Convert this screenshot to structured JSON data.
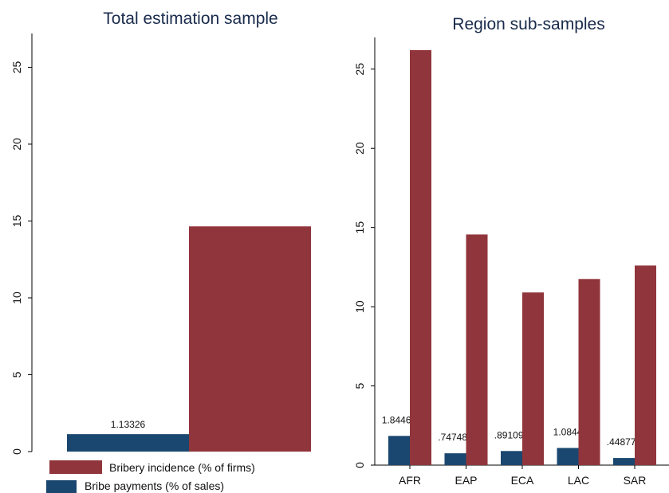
{
  "chart_data": [
    {
      "type": "bar",
      "title": "Total estimation sample",
      "categories": [
        null
      ],
      "series": [
        {
          "name": "Bribe payments (% of sales)",
          "color": "#1a476f",
          "values": [
            1.13326
          ]
        },
        {
          "name": "Bribery incidence (% of firms)",
          "color": "#90353b",
          "values": [
            14.65
          ]
        }
      ],
      "ylim": [
        0,
        27.2
      ],
      "yticks": [
        0,
        5,
        10,
        15,
        20,
        25
      ]
    },
    {
      "type": "bar",
      "title": "Region sub-samples",
      "categories": [
        "AFR",
        "EAP",
        "ECA",
        "LAC",
        "SAR"
      ],
      "series": [
        {
          "color": "#1a476f",
          "values": [
            1.84464,
            0.747485,
            0.891099,
            1.0844,
            0.448775
          ],
          "value_labels": [
            "1.84464",
            ".747485",
            ".891099",
            "1.0844",
            ".448775"
          ]
        },
        {
          "color": "#90353b",
          "values": [
            26.2,
            14.56,
            10.9,
            11.75,
            12.6
          ]
        }
      ],
      "ylim": [
        0,
        27
      ],
      "yticks": [
        0,
        5,
        10,
        15,
        20,
        25
      ]
    }
  ]
}
